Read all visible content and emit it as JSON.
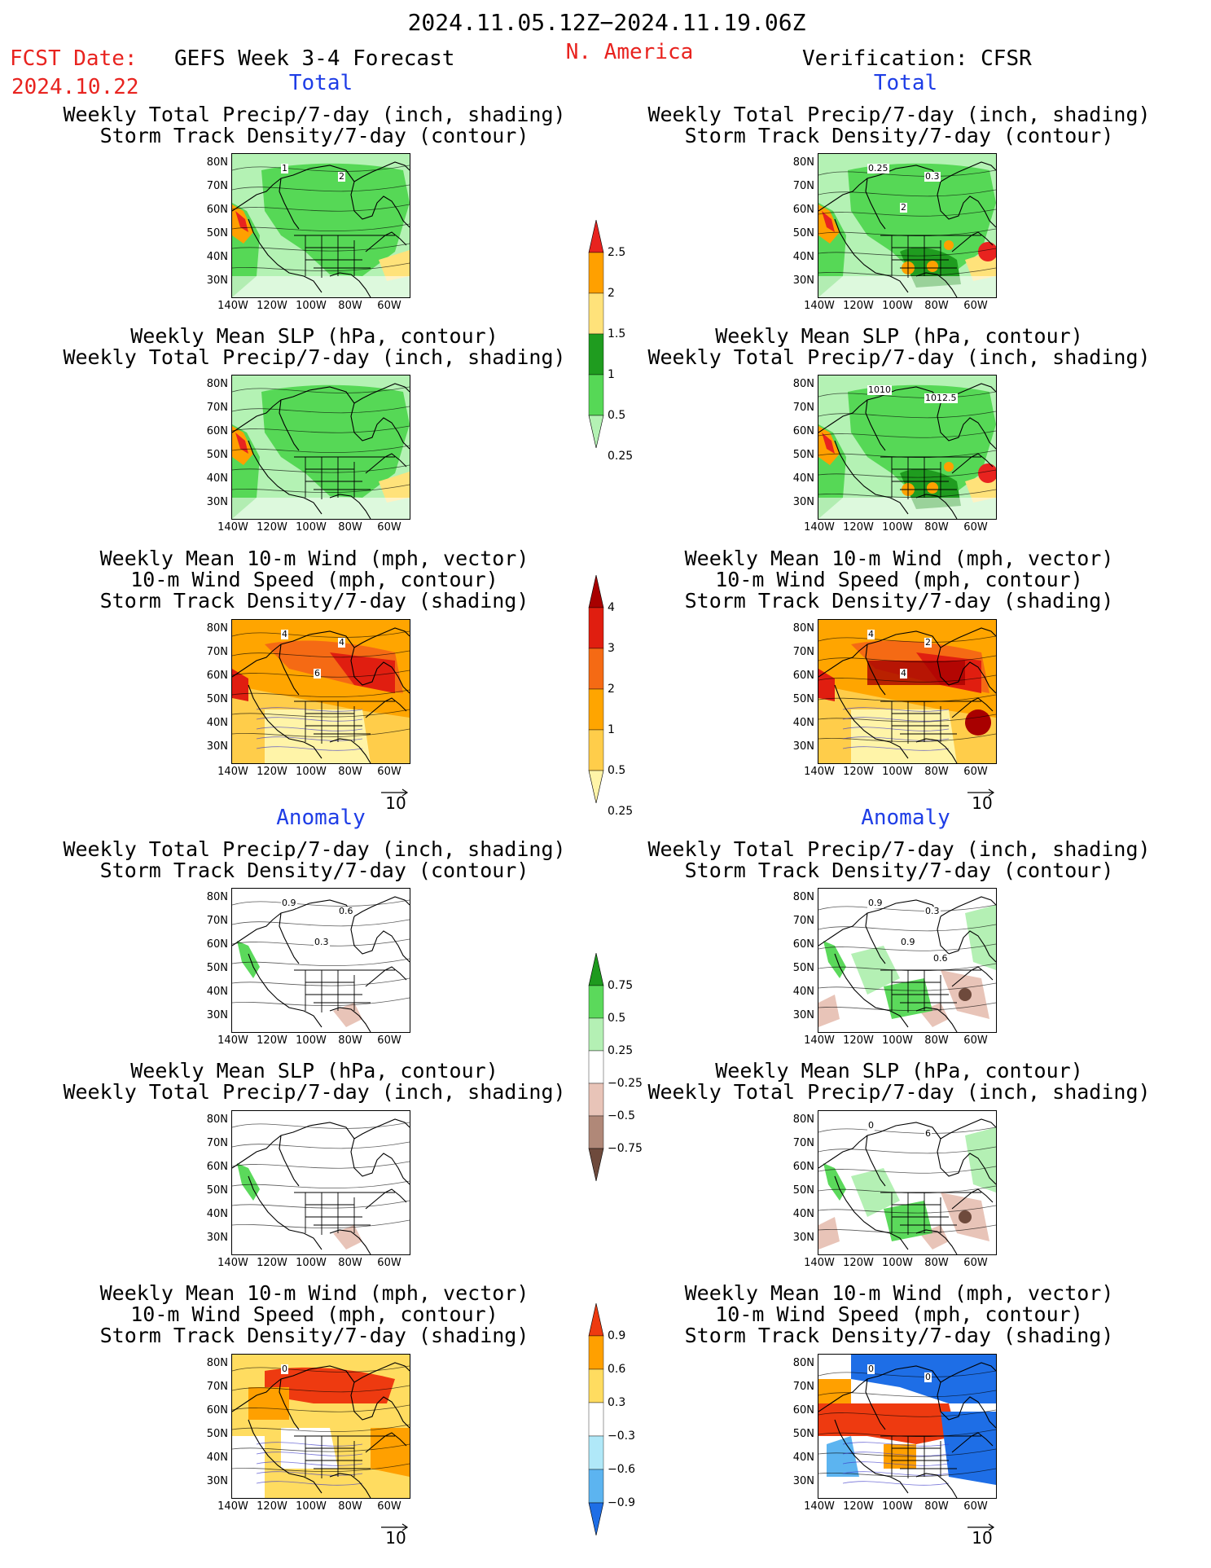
{
  "header": {
    "period": "2024.11.05.12Z−2024.11.19.06Z",
    "fcst_label": "FCST Date:",
    "fcst_date": "2024.10.22",
    "forecast_title": "GEFS Week 3-4 Forecast",
    "region": "N. America",
    "verification": "Verification: CFSR"
  },
  "sections": {
    "total": "Total",
    "anomaly": "Anomaly"
  },
  "titles": {
    "precip_storm": [
      "Weekly Total Precip/7-day (inch, shading)",
      "Storm Track Density/7-day (contour)"
    ],
    "slp_precip": [
      "Weekly Mean SLP (hPa, contour)",
      "Weekly Total Precip/7-day (inch, shading)"
    ],
    "wind_storm": [
      "Weekly Mean 10-m Wind (mph, vector)",
      "10-m Wind Speed (mph, contour)",
      "Storm Track Density/7-day (shading)"
    ]
  },
  "axes": {
    "lat": [
      "80N",
      "70N",
      "60N",
      "50N",
      "40N",
      "30N"
    ],
    "lon": [
      "140W",
      "120W",
      "100W",
      "80W",
      "60W"
    ]
  },
  "vector_ref": "10",
  "colorbars": {
    "precip_total": {
      "labels": [
        "2.5",
        "2",
        "1.5",
        "1",
        "0.5",
        "0.25"
      ],
      "colors": [
        "#e8231f",
        "#ffa000",
        "#ffe27a",
        "#1f9c1f",
        "#56d856",
        "#b4f2b4"
      ]
    },
    "storm_total": {
      "labels": [
        "4",
        "3",
        "2",
        "1",
        "0.5",
        "0.25"
      ],
      "colors": [
        "#a80000",
        "#e01e10",
        "#f56a14",
        "#ffa500",
        "#ffcd4a",
        "#fff4a8"
      ]
    },
    "precip_anom": {
      "labels": [
        "0.75",
        "0.5",
        "0.25",
        "−0.25",
        "−0.5",
        "−0.75"
      ],
      "colors": [
        "#1e9a1e",
        "#5bd95b",
        "#b4f0b4",
        "#ffffff",
        "#e8c4b8",
        "#b08878",
        "#6e4a3c"
      ]
    },
    "storm_anom": {
      "labels": [
        "0.9",
        "0.6",
        "0.3",
        "−0.3",
        "−0.6",
        "−0.9"
      ],
      "colors": [
        "#ee3a10",
        "#ffa000",
        "#ffdc60",
        "#ffffff",
        "#b0e8f8",
        "#5cb4f0",
        "#1e6ee6"
      ]
    }
  },
  "contour_labels": {
    "f_total_precip": [
      "1",
      "2"
    ],
    "v_total_precip": [
      "0.25",
      "0.3",
      "2"
    ],
    "v_total_slp": [
      "1010",
      "1012.5"
    ],
    "f_total_wind": [
      "4",
      "4",
      "6"
    ],
    "v_total_wind": [
      "4",
      "2",
      "4"
    ],
    "f_anom_precip": [
      "0.9",
      "0.6",
      "0.3"
    ],
    "v_anom_precip": [
      "0.9",
      "0.3",
      "0.9",
      "0.6"
    ],
    "v_anom_slp": [
      "0",
      "6"
    ],
    "f_anom_wind": [
      "0"
    ],
    "v_anom_wind": [
      "0",
      "0"
    ]
  }
}
